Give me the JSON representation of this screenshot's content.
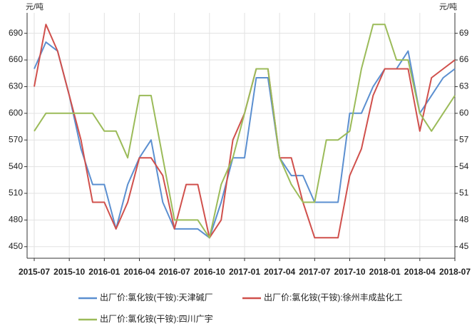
{
  "chart_data": {
    "type": "line",
    "y_unit": "元/吨",
    "y2_unit": "元/吨",
    "x": [
      "2015-07",
      "2015-08",
      "2015-09",
      "2015-10",
      "2015-11",
      "2015-12",
      "2016-01",
      "2016-02",
      "2016-03",
      "2016-04",
      "2016-05",
      "2016-06",
      "2016-07",
      "2016-08",
      "2016-09",
      "2016-10",
      "2016-11",
      "2016-12",
      "2017-01",
      "2017-02",
      "2017-03",
      "2017-04",
      "2017-05",
      "2017-06",
      "2017-07",
      "2017-08",
      "2017-09",
      "2017-10",
      "2017-11",
      "2017-12",
      "2018-01",
      "2018-02",
      "2018-03",
      "2018-04",
      "2018-05",
      "2018-06",
      "2018-07"
    ],
    "series": [
      {
        "name": "出厂价:氯化铵(干铵):天津碱厂",
        "color": "#5b8fd0",
        "values": [
          650,
          680,
          670,
          620,
          560,
          520,
          520,
          470,
          520,
          550,
          570,
          500,
          470,
          470,
          470,
          460,
          500,
          550,
          550,
          640,
          640,
          550,
          530,
          530,
          500,
          500,
          500,
          600,
          600,
          630,
          650,
          650,
          670,
          600,
          620,
          640,
          650
        ]
      },
      {
        "name": "出厂价:氯化铵(干铵):徐州丰成盐化工",
        "color": "#d0504c",
        "values": [
          630,
          700,
          670,
          620,
          570,
          500,
          500,
          470,
          500,
          550,
          550,
          530,
          470,
          520,
          520,
          460,
          480,
          570,
          600,
          650,
          650,
          550,
          550,
          500,
          460,
          460,
          460,
          530,
          560,
          620,
          650,
          650,
          650,
          580,
          640,
          650,
          660
        ]
      },
      {
        "name": "出厂价:氯化铵(干铵):四川广宇",
        "color": "#9bbb59",
        "values": [
          580,
          600,
          600,
          600,
          600,
          600,
          580,
          580,
          550,
          620,
          620,
          550,
          480,
          480,
          480,
          460,
          520,
          550,
          600,
          650,
          650,
          550,
          520,
          500,
          500,
          570,
          570,
          580,
          650,
          700,
          700,
          660,
          660,
          600,
          580,
          600,
          620
        ]
      }
    ],
    "ylim": [
      437,
      713
    ],
    "yticks": [
      450,
      480,
      510,
      540,
      570,
      600,
      630,
      660,
      690
    ],
    "y2lim": [
      43.7,
      71.3
    ],
    "y2ticks": [
      45,
      48,
      51,
      54,
      57,
      60,
      63,
      66,
      69
    ],
    "grid": true,
    "legend": "bottom"
  }
}
